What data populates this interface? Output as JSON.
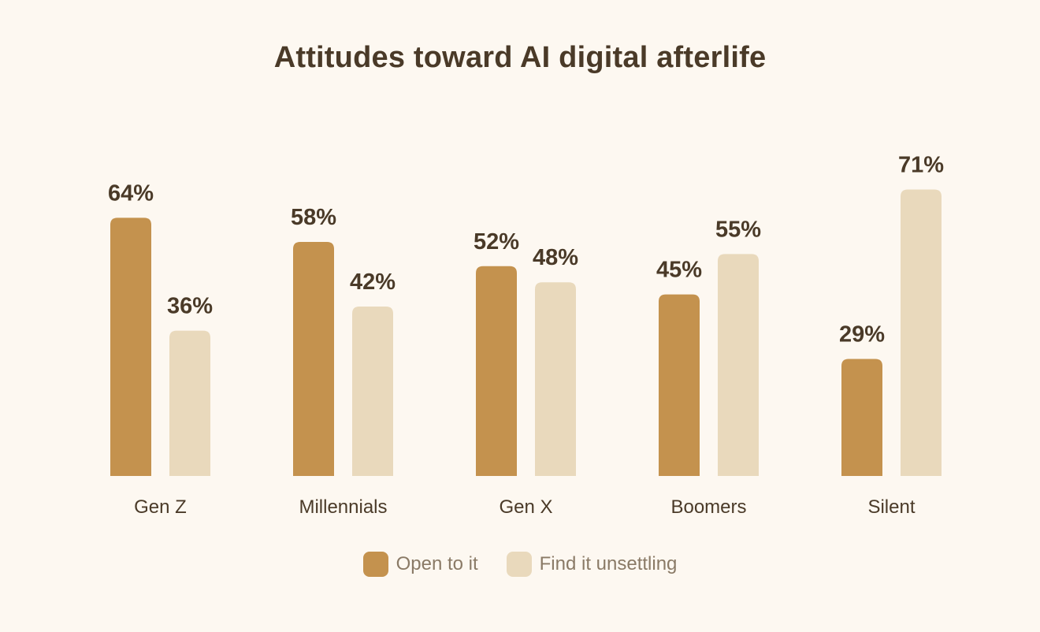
{
  "chart_data": {
    "type": "bar",
    "title": "Attitudes toward AI digital afterlife",
    "xlabel": "",
    "ylabel": "",
    "categories": [
      "Gen Z",
      "Millennials",
      "Gen X",
      "Boomers",
      "Silent"
    ],
    "series": [
      {
        "name": "Open to it",
        "color": "#c4924e",
        "values": [
          64,
          58,
          52,
          45,
          29
        ]
      },
      {
        "name": "Find it unsettling",
        "color": "#e9d9bc",
        "values": [
          36,
          42,
          48,
          55,
          71
        ]
      }
    ],
    "value_suffix": "%",
    "ylim": [
      0,
      100
    ],
    "grid": false,
    "legend_position": "bottom-center"
  }
}
